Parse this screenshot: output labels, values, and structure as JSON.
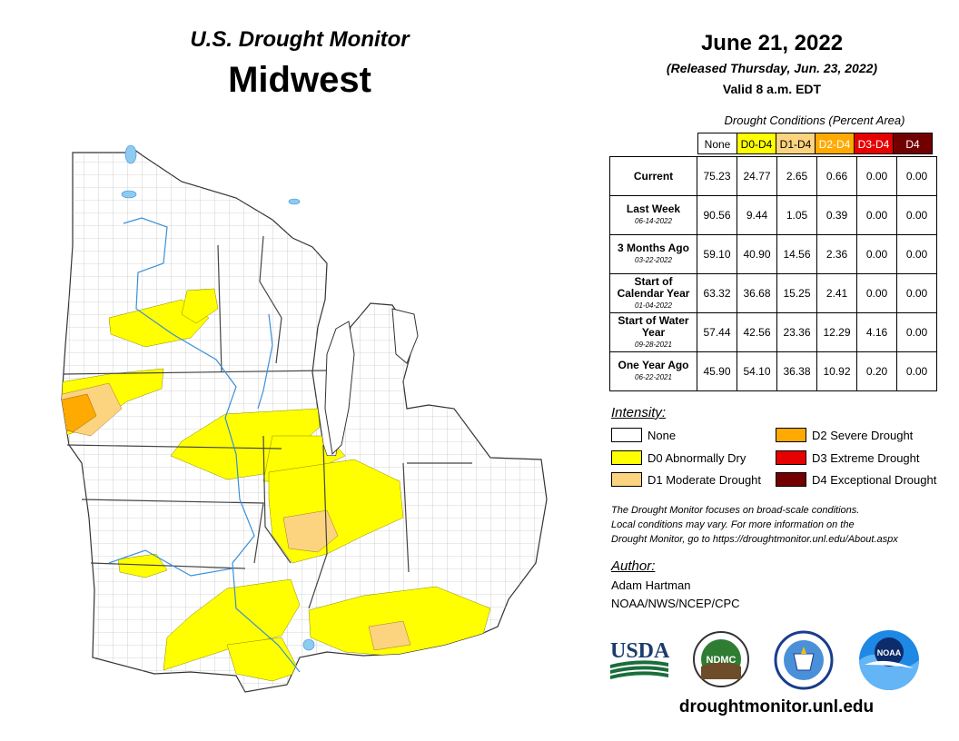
{
  "header": {
    "title": "U.S. Drought Monitor",
    "region": "Midwest",
    "date": "June 21, 2022",
    "released": "(Released Thursday, Jun. 23, 2022)",
    "valid": "Valid 8 a.m. EDT"
  },
  "table": {
    "caption": "Drought Conditions (Percent Area)",
    "columns": [
      {
        "label": "None",
        "color": "#ffffff",
        "text_color": "#000000"
      },
      {
        "label": "D0-D4",
        "color": "#ffff00",
        "text_color": "#000000"
      },
      {
        "label": "D1-D4",
        "color": "#fcd37f",
        "text_color": "#000000"
      },
      {
        "label": "D2-D4",
        "color": "#ffaa00",
        "text_color": "#ffffff"
      },
      {
        "label": "D3-D4",
        "color": "#e60000",
        "text_color": "#ffffff"
      },
      {
        "label": "D4",
        "color": "#730000",
        "text_color": "#ffffff"
      }
    ],
    "rows": [
      {
        "label": "Current",
        "sub": "",
        "values": [
          "75.23",
          "24.77",
          "2.65",
          "0.66",
          "0.00",
          "0.00"
        ]
      },
      {
        "label": "Last Week",
        "sub": "06-14-2022",
        "values": [
          "90.56",
          "9.44",
          "1.05",
          "0.39",
          "0.00",
          "0.00"
        ]
      },
      {
        "label": "3 Months Ago",
        "sub": "03-22-2022",
        "values": [
          "59.10",
          "40.90",
          "14.56",
          "2.36",
          "0.00",
          "0.00"
        ]
      },
      {
        "label": "Start of Calendar Year",
        "sub": "01-04-2022",
        "values": [
          "63.32",
          "36.68",
          "15.25",
          "2.41",
          "0.00",
          "0.00"
        ]
      },
      {
        "label": "Start of Water Year",
        "sub": "09-28-2021",
        "values": [
          "57.44",
          "42.56",
          "23.36",
          "12.29",
          "4.16",
          "0.00"
        ]
      },
      {
        "label": "One Year Ago",
        "sub": "06-22-2021",
        "values": [
          "45.90",
          "54.10",
          "36.38",
          "10.92",
          "0.20",
          "0.00"
        ]
      }
    ]
  },
  "legend": {
    "title": "Intensity:",
    "items": [
      {
        "label": "None",
        "color": "#ffffff"
      },
      {
        "label": "D0 Abnormally Dry",
        "color": "#ffff00"
      },
      {
        "label": "D1 Moderate Drought",
        "color": "#fcd37f"
      },
      {
        "label": "D2 Severe Drought",
        "color": "#ffaa00"
      },
      {
        "label": "D3 Extreme Drought",
        "color": "#e60000"
      },
      {
        "label": "D4 Exceptional Drought",
        "color": "#730000"
      }
    ]
  },
  "note": {
    "line1": "The Drought Monitor focuses on broad-scale conditions.",
    "line2": "Local conditions may vary. For more information on the",
    "line3": "Drought Monitor, go to https://droughtmonitor.unl.edu/About.aspx"
  },
  "author": {
    "title": "Author:",
    "name": "Adam Hartman",
    "org": "NOAA/NWS/NCEP/CPC"
  },
  "logos": {
    "usda": "USDA",
    "ndmc": "NDMC",
    "noaa": "NOAA"
  },
  "footer": {
    "url": "droughtmonitor.unl.edu"
  },
  "map": {
    "water_color": "#8ecbf0",
    "river_color": "#3a8fd9",
    "state_border_color": "#444444"
  }
}
